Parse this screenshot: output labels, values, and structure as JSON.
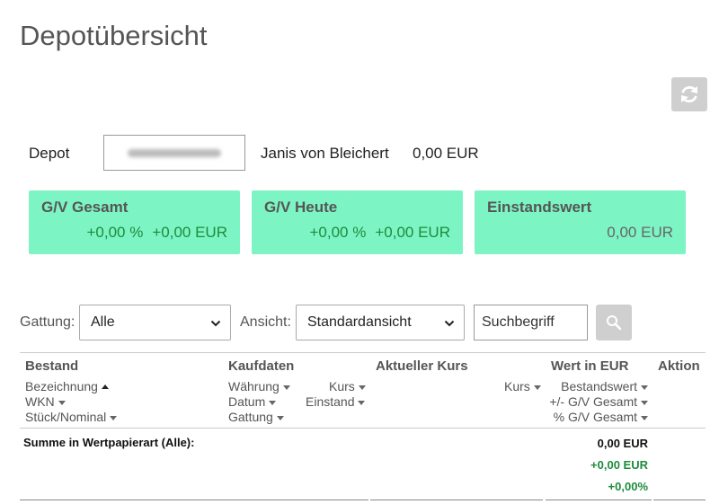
{
  "page": {
    "title": "Depotübersicht"
  },
  "depot": {
    "label": "Depot",
    "owner": "Janis von Bleichert",
    "amount": "0,00 EUR"
  },
  "cards": [
    {
      "title": "G/V Gesamt",
      "percent": "+0,00 %",
      "amount": "+0,00 EUR"
    },
    {
      "title": "G/V Heute",
      "percent": "+0,00 %",
      "amount": "+0,00 EUR"
    },
    {
      "title": "Einstandswert",
      "amount": "0,00 EUR"
    }
  ],
  "filters": {
    "gattung_label": "Gattung:",
    "gattung_value": "Alle",
    "ansicht_label": "Ansicht:",
    "ansicht_value": "Standardansicht",
    "search_placeholder": "Suchbegriff"
  },
  "table": {
    "headers": {
      "bestand": "Bestand",
      "kaufdaten": "Kaufdaten",
      "aktueller_kurs": "Aktueller Kurs",
      "wert": "Wert in EUR",
      "aktion": "Aktion"
    },
    "sort": {
      "bezeichnung": "Bezeichnung",
      "wkn": "WKN",
      "stueck": "Stück/Nominal",
      "waehrung": "Währung",
      "datum": "Datum",
      "gattung": "Gattung",
      "kaufkurs": "Kurs",
      "einstand": "Einstand",
      "aktkurs": "Kurs",
      "bestandswert": "Bestandswert",
      "gv_gesamt": "+/- G/V Gesamt",
      "pct_gv_gesamt": "% G/V Gesamt"
    },
    "summary": {
      "label": "Summe in Wertpapierart (Alle):",
      "bestandswert": "0,00 EUR",
      "gv": "+0,00 EUR",
      "pct": "+0,00%"
    }
  },
  "colors": {
    "card_bg": "#7df4c4",
    "positive": "#1d8c3c",
    "button_grey": "#cfcfcf"
  },
  "icons": {
    "refresh": "refresh-icon",
    "search": "search-icon",
    "select_chevron": "chevron-down-icon"
  }
}
